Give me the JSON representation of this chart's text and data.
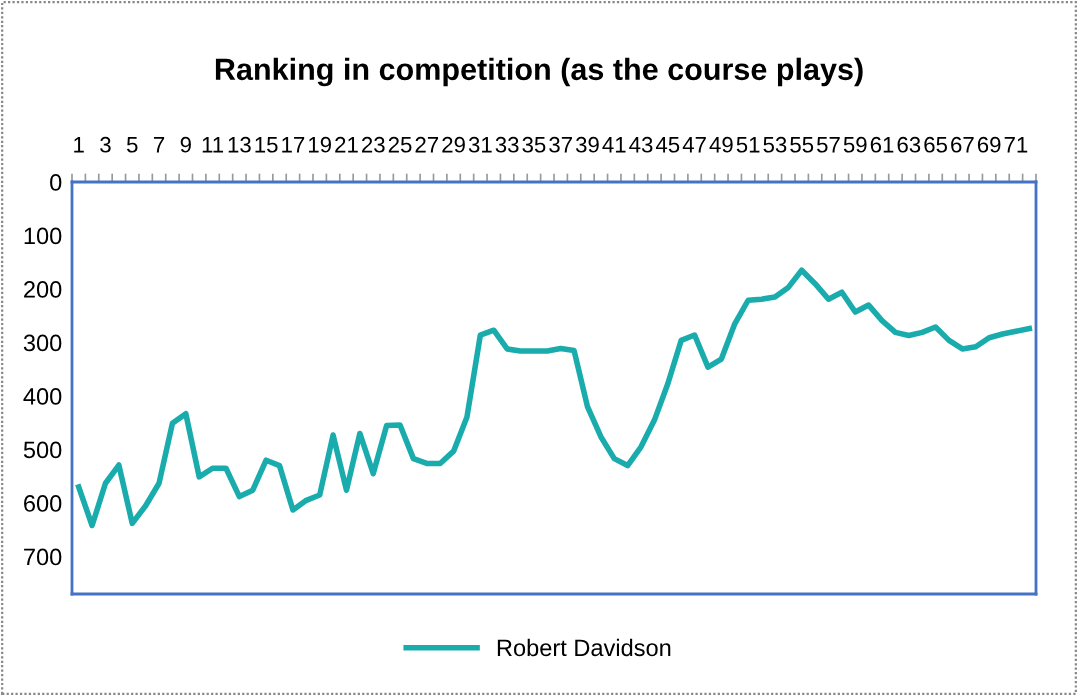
{
  "chart_data": {
    "type": "line",
    "title": "Ranking in competition (as the course plays)",
    "categories": [
      "1",
      null,
      "3",
      null,
      "5",
      null,
      "7",
      null,
      "9",
      null,
      "11",
      null,
      "13",
      null,
      "15",
      null,
      "17",
      null,
      "19",
      null,
      "21",
      null,
      "23",
      null,
      "25",
      null,
      "27",
      null,
      "29",
      null,
      "31",
      null,
      "33",
      null,
      "35",
      null,
      "37",
      null,
      "39",
      null,
      "41",
      null,
      "43",
      null,
      "45",
      null,
      "47",
      null,
      "49",
      null,
      "51",
      null,
      "53",
      null,
      "55",
      null,
      "57",
      null,
      "59",
      null,
      "61",
      null,
      "63",
      null,
      "65",
      null,
      "67",
      null,
      "69",
      null,
      "71",
      null
    ],
    "series": [
      {
        "name": "Robert Davidson",
        "color": "#1aacac",
        "values": [
          570,
          642,
          563,
          529,
          638,
          605,
          563,
          451,
          433,
          551,
          535,
          535,
          588,
          576,
          520,
          530,
          613,
          595,
          585,
          473,
          576,
          470,
          545,
          455,
          454,
          517,
          526,
          526,
          503,
          439,
          286,
          277,
          312,
          316,
          316,
          316,
          311,
          315,
          420,
          476,
          517,
          530,
          495,
          445,
          377,
          296,
          286,
          346,
          331,
          265,
          221,
          219,
          215,
          197,
          165,
          190,
          219,
          206,
          243,
          230,
          259,
          281,
          287,
          281,
          271,
          296,
          312,
          308,
          291,
          284,
          279,
          274
        ]
      }
    ],
    "ylim": [
      770,
      0
    ],
    "yticks": [
      0,
      100,
      200,
      300,
      400,
      500,
      600,
      700
    ],
    "grid": false,
    "legend": "bottom",
    "marker": "none",
    "line_style": "solid"
  }
}
